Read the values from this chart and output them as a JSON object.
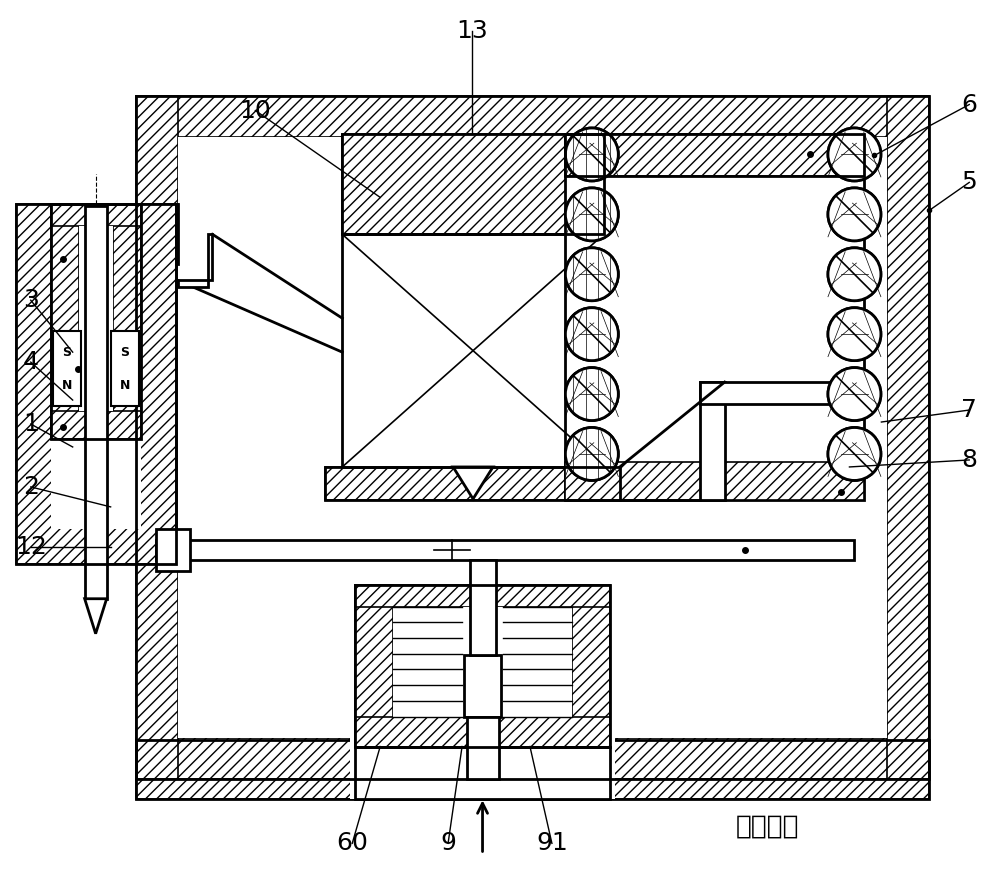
{
  "bg_color": "#ffffff",
  "line_color": "#000000",
  "inlet_label": "入口压力",
  "font_size": 16,
  "label_font_size": 18,
  "lw_main": 2.0,
  "lw_thin": 1.2,
  "hatch_density": "///",
  "fig_w": 10.0,
  "fig_h": 8.72,
  "xlim": [
    0,
    10
  ],
  "ylim": [
    0,
    8.72
  ]
}
